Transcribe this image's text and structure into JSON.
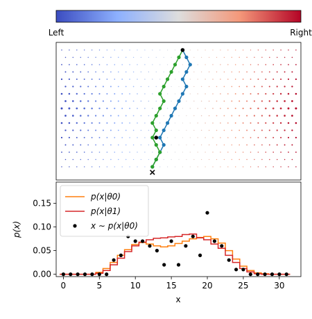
{
  "colorbar": {
    "left_label": "Left",
    "right_label": "Right",
    "colors": [
      "#3b4cc0",
      "#8db0fe",
      "#dddddd",
      "#f4987a",
      "#b40426"
    ],
    "end_color": "#b40426"
  },
  "chart_data": [
    {
      "type": "scatter",
      "title": "",
      "description_free": true,
      "galton_board": {
        "rows": 16,
        "cols": 32,
        "colormap": "coolwarm",
        "blue_path": {
          "color": "#1f77b4",
          "x": [
            16,
            16.5,
            17,
            16.5,
            16,
            16.5,
            16,
            15.5,
            15,
            14.5,
            14,
            13.5,
            13,
            13.5,
            13,
            12.5,
            12
          ],
          "y": [
            16,
            15,
            14,
            13,
            12,
            11,
            10,
            9,
            8,
            7,
            6,
            5,
            4,
            3,
            2,
            1,
            0
          ]
        },
        "green_path": {
          "color": "#2ca02c",
          "x": [
            16,
            15.5,
            15,
            14.5,
            14,
            13.5,
            13,
            13.5,
            13,
            12.5,
            12,
            12.5,
            12,
            12.5,
            13,
            12.5,
            12
          ],
          "y": [
            16,
            15,
            14,
            13,
            12,
            11,
            10,
            9,
            8,
            7,
            6,
            5,
            4,
            3,
            2,
            1,
            0
          ]
        },
        "black_points_x": [
          16,
          12.5
        ],
        "black_points_y": [
          16,
          4
        ],
        "end_marker_x": 12,
        "end_marker_y": 0
      }
    },
    {
      "type": "line",
      "xlabel": "x",
      "ylabel": "p(x)",
      "xlim": [
        -1,
        33
      ],
      "ylim": [
        -0.005,
        0.195
      ],
      "xticks": [
        0,
        5,
        10,
        15,
        20,
        25,
        30
      ],
      "yticks": [
        0.0,
        0.05,
        0.1,
        0.15
      ],
      "ytick_labels": [
        "0.00",
        "0.05",
        "0.10",
        "0.15"
      ],
      "x": [
        0,
        1,
        2,
        3,
        4,
        5,
        6,
        7,
        8,
        9,
        10,
        11,
        12,
        13,
        14,
        15,
        16,
        17,
        18,
        19,
        20,
        21,
        22,
        23,
        24,
        25,
        26,
        27,
        28,
        29,
        30,
        31
      ],
      "series": [
        {
          "name": "p(x|θ0)",
          "color": "#ff7f0e",
          "step": true,
          "values": [
            0,
            0,
            0,
            0,
            0,
            0.004,
            0.012,
            0.025,
            0.04,
            0.052,
            0.063,
            0.067,
            0.064,
            0.06,
            0.058,
            0.06,
            0.065,
            0.07,
            0.075,
            0.078,
            0.08,
            0.075,
            0.066,
            0.05,
            0.032,
            0.017,
            0.008,
            0.003,
            0.001,
            0,
            0,
            0
          ]
        },
        {
          "name": "p(x|θ1)",
          "color": "#d62728",
          "step": true,
          "values": [
            0,
            0,
            0,
            0,
            0,
            0.002,
            0.008,
            0.02,
            0.034,
            0.048,
            0.06,
            0.068,
            0.073,
            0.076,
            0.077,
            0.079,
            0.08,
            0.084,
            0.085,
            0.077,
            0.073,
            0.064,
            0.055,
            0.04,
            0.025,
            0.012,
            0.005,
            0.001,
            0,
            0,
            0,
            0
          ]
        },
        {
          "name": "x ∼ p(x|θ0)",
          "color": "#000000",
          "marker": "dot",
          "values": [
            0,
            0,
            0,
            0,
            0,
            0,
            0,
            0.03,
            0.04,
            0.08,
            0.07,
            0.07,
            0.06,
            0.05,
            0.02,
            0.07,
            0.02,
            0.06,
            0.08,
            0.04,
            0.13,
            0.07,
            0.06,
            0.03,
            0.01,
            0.01,
            0,
            0,
            0,
            0,
            0,
            0
          ]
        }
      ],
      "legend_location": "upper-left"
    }
  ]
}
